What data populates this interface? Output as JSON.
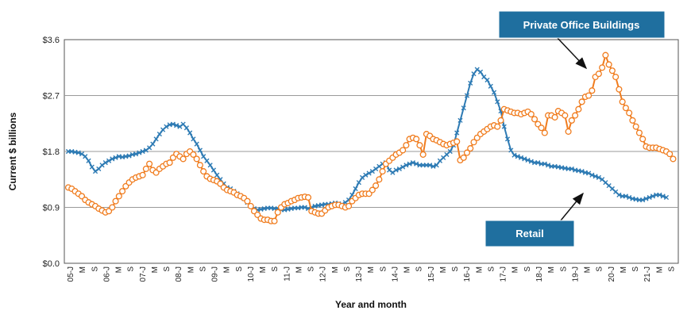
{
  "chart_data": {
    "type": "line",
    "title": "",
    "xlabel": "Year and month",
    "ylabel": "Current $ billions",
    "ylim": [
      0,
      3.6
    ],
    "yticks": [
      "$0.0",
      "$0.9",
      "$1.8",
      "$2.7",
      "$3.6"
    ],
    "grid": "horizontal",
    "x_tick_labels": [
      "05-J",
      "M",
      "S",
      "06-J",
      "M",
      "S",
      "07-J",
      "M",
      "S",
      "08-J",
      "M",
      "S",
      "09-J",
      "M",
      "S",
      "10-J",
      "M",
      "S",
      "11-J",
      "M",
      "S",
      "12-J",
      "M",
      "S",
      "13-J",
      "M",
      "S",
      "14-J",
      "M",
      "S",
      "15-J",
      "M",
      "S",
      "16-J",
      "M",
      "S",
      "17-J",
      "M",
      "S",
      "18-J",
      "M",
      "S",
      "19-J",
      "M",
      "S",
      "20-J",
      "M",
      "S",
      "21-J",
      "M",
      "S"
    ],
    "series": [
      {
        "name": "Retail",
        "color": "#2e7bb4",
        "marker": "x",
        "values": [
          1.8,
          1.8,
          1.79,
          1.78,
          1.76,
          1.72,
          1.65,
          1.55,
          1.48,
          1.52,
          1.58,
          1.62,
          1.65,
          1.68,
          1.7,
          1.72,
          1.71,
          1.72,
          1.73,
          1.75,
          1.76,
          1.78,
          1.8,
          1.82,
          1.86,
          1.92,
          2.0,
          2.08,
          2.15,
          2.2,
          2.23,
          2.24,
          2.22,
          2.2,
          2.24,
          2.18,
          2.1,
          2.0,
          1.92,
          1.82,
          1.72,
          1.65,
          1.58,
          1.5,
          1.42,
          1.35,
          1.28,
          1.22,
          1.2,
          1.16,
          1.12,
          1.08,
          1.04,
          0.98,
          0.92,
          0.88,
          0.86,
          0.87,
          0.88,
          0.89,
          0.89,
          0.88,
          0.88,
          0.86,
          0.86,
          0.87,
          0.88,
          0.89,
          0.89,
          0.9,
          0.9,
          0.88,
          0.9,
          0.92,
          0.93,
          0.94,
          0.95,
          0.95,
          0.96,
          0.97,
          0.96,
          0.95,
          0.98,
          1.02,
          1.1,
          1.2,
          1.3,
          1.38,
          1.42,
          1.45,
          1.48,
          1.52,
          1.56,
          1.6,
          1.62,
          1.5,
          1.46,
          1.5,
          1.52,
          1.55,
          1.58,
          1.6,
          1.62,
          1.6,
          1.58,
          1.58,
          1.58,
          1.58,
          1.56,
          1.58,
          1.65,
          1.7,
          1.75,
          1.8,
          1.9,
          2.1,
          2.3,
          2.5,
          2.7,
          2.9,
          3.05,
          3.12,
          3.08,
          3.0,
          2.95,
          2.85,
          2.75,
          2.6,
          2.45,
          2.2,
          2.0,
          1.82,
          1.74,
          1.72,
          1.7,
          1.68,
          1.66,
          1.64,
          1.62,
          1.62,
          1.6,
          1.6,
          1.58,
          1.56,
          1.56,
          1.55,
          1.54,
          1.53,
          1.52,
          1.52,
          1.5,
          1.49,
          1.48,
          1.46,
          1.45,
          1.42,
          1.4,
          1.38,
          1.35,
          1.3,
          1.25,
          1.2,
          1.15,
          1.1,
          1.08,
          1.08,
          1.06,
          1.04,
          1.03,
          1.02,
          1.02,
          1.04,
          1.06,
          1.08,
          1.1,
          1.1,
          1.08,
          1.06
        ]
      },
      {
        "name": "Private Office Buildings",
        "color": "#f07c1e",
        "marker": "o",
        "values": [
          1.22,
          1.2,
          1.16,
          1.12,
          1.08,
          1.02,
          0.98,
          0.95,
          0.92,
          0.88,
          0.85,
          0.82,
          0.84,
          0.9,
          1.0,
          1.08,
          1.16,
          1.24,
          1.3,
          1.35,
          1.38,
          1.4,
          1.42,
          1.52,
          1.6,
          1.5,
          1.46,
          1.52,
          1.56,
          1.6,
          1.62,
          1.7,
          1.76,
          1.72,
          1.68,
          1.76,
          1.8,
          1.75,
          1.68,
          1.58,
          1.48,
          1.4,
          1.36,
          1.34,
          1.32,
          1.28,
          1.22,
          1.18,
          1.16,
          1.14,
          1.1,
          1.08,
          1.05,
          1.0,
          0.92,
          0.84,
          0.78,
          0.72,
          0.7,
          0.7,
          0.68,
          0.68,
          0.82,
          0.9,
          0.95,
          0.97,
          1.0,
          1.02,
          1.05,
          1.06,
          1.07,
          1.06,
          0.84,
          0.82,
          0.8,
          0.8,
          0.85,
          0.9,
          0.92,
          0.94,
          0.94,
          0.92,
          0.9,
          0.92,
          1.0,
          1.05,
          1.1,
          1.12,
          1.12,
          1.12,
          1.18,
          1.25,
          1.35,
          1.48,
          1.6,
          1.65,
          1.7,
          1.75,
          1.78,
          1.82,
          1.9,
          2.0,
          2.02,
          2.0,
          1.9,
          1.75,
          2.08,
          2.05,
          2.0,
          1.98,
          1.95,
          1.92,
          1.9,
          1.92,
          1.94,
          1.96,
          1.66,
          1.7,
          1.78,
          1.85,
          1.95,
          2.02,
          2.08,
          2.12,
          2.16,
          2.2,
          2.22,
          2.2,
          2.3,
          2.48,
          2.46,
          2.44,
          2.42,
          2.42,
          2.4,
          2.42,
          2.44,
          2.4,
          2.32,
          2.24,
          2.18,
          2.1,
          2.38,
          2.38,
          2.35,
          2.45,
          2.42,
          2.38,
          2.12,
          2.3,
          2.38,
          2.48,
          2.6,
          2.68,
          2.7,
          2.78,
          3.0,
          3.05,
          3.15,
          3.35,
          3.2,
          3.1,
          3.0,
          2.8,
          2.6,
          2.5,
          2.42,
          2.3,
          2.2,
          2.1,
          2.0,
          1.88,
          1.86,
          1.86,
          1.86,
          1.84,
          1.82,
          1.8,
          1.76,
          1.68
        ]
      }
    ],
    "annotations": [
      {
        "label": "Private Office Buildings",
        "points_to": "Private Office Buildings"
      },
      {
        "label": "Retail",
        "points_to": "Retail"
      }
    ]
  }
}
